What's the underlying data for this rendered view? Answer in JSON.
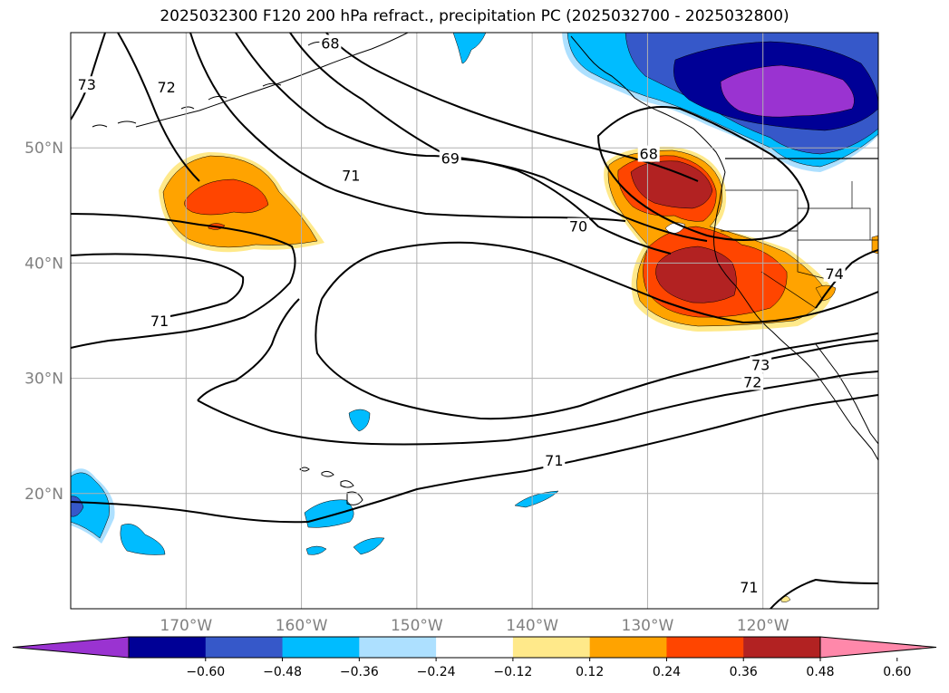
{
  "title": "2025032300 F120 200 hPa refract., precipitation PC (2025032700 - 2025032800)",
  "map": {
    "lon_range": [
      -180,
      -110
    ],
    "lat_range": [
      10,
      60
    ],
    "lon_ticks": [
      {
        "value": -170,
        "label": "170°W"
      },
      {
        "value": -160,
        "label": "160°W"
      },
      {
        "value": -150,
        "label": "150°W"
      },
      {
        "value": -140,
        "label": "140°W"
      },
      {
        "value": -130,
        "label": "130°W"
      },
      {
        "value": -120,
        "label": "120°W"
      }
    ],
    "lat_ticks": [
      {
        "value": 20,
        "label": "20°N"
      },
      {
        "value": 30,
        "label": "30°N"
      },
      {
        "value": 40,
        "label": "40°N"
      },
      {
        "value": 50,
        "label": "50°N"
      }
    ],
    "grid": true,
    "contour_labels": [
      {
        "text": "68",
        "lon": -157.5,
        "lat": 59.1
      },
      {
        "text": "73",
        "lon": -178.6,
        "lat": 55.5
      },
      {
        "text": "72",
        "lon": -171.7,
        "lat": 55.3
      },
      {
        "text": "69",
        "lon": -147.1,
        "lat": 49.1
      },
      {
        "text": "68",
        "lon": -129.9,
        "lat": 49.5
      },
      {
        "text": "71",
        "lon": -155.7,
        "lat": 47.6
      },
      {
        "text": "70",
        "lon": -136.0,
        "lat": 43.2
      },
      {
        "text": "71",
        "lon": -172.3,
        "lat": 35.0
      },
      {
        "text": "73",
        "lon": -120.2,
        "lat": 31.2
      },
      {
        "text": "72",
        "lon": -120.9,
        "lat": 29.7
      },
      {
        "text": "71",
        "lon": -138.1,
        "lat": 22.9
      },
      {
        "text": "71",
        "lon": -121.2,
        "lat": 11.9
      },
      {
        "text": "74",
        "lon": -113.8,
        "lat": 39.1
      }
    ]
  },
  "colorbar": {
    "colors": [
      "#9a33d1",
      "#000096",
      "#3658c9",
      "#00bcff",
      "#ade0ff",
      "#ffffff",
      "#ffe98a",
      "#ffa300",
      "#ff4500",
      "#b22222",
      "#ff88aa"
    ],
    "tick_labels": [
      "−0.60",
      "−0.48",
      "−0.36",
      "−0.24",
      "−0.12",
      "0.12",
      "0.24",
      "0.36",
      "0.48",
      "0.60"
    ]
  }
}
